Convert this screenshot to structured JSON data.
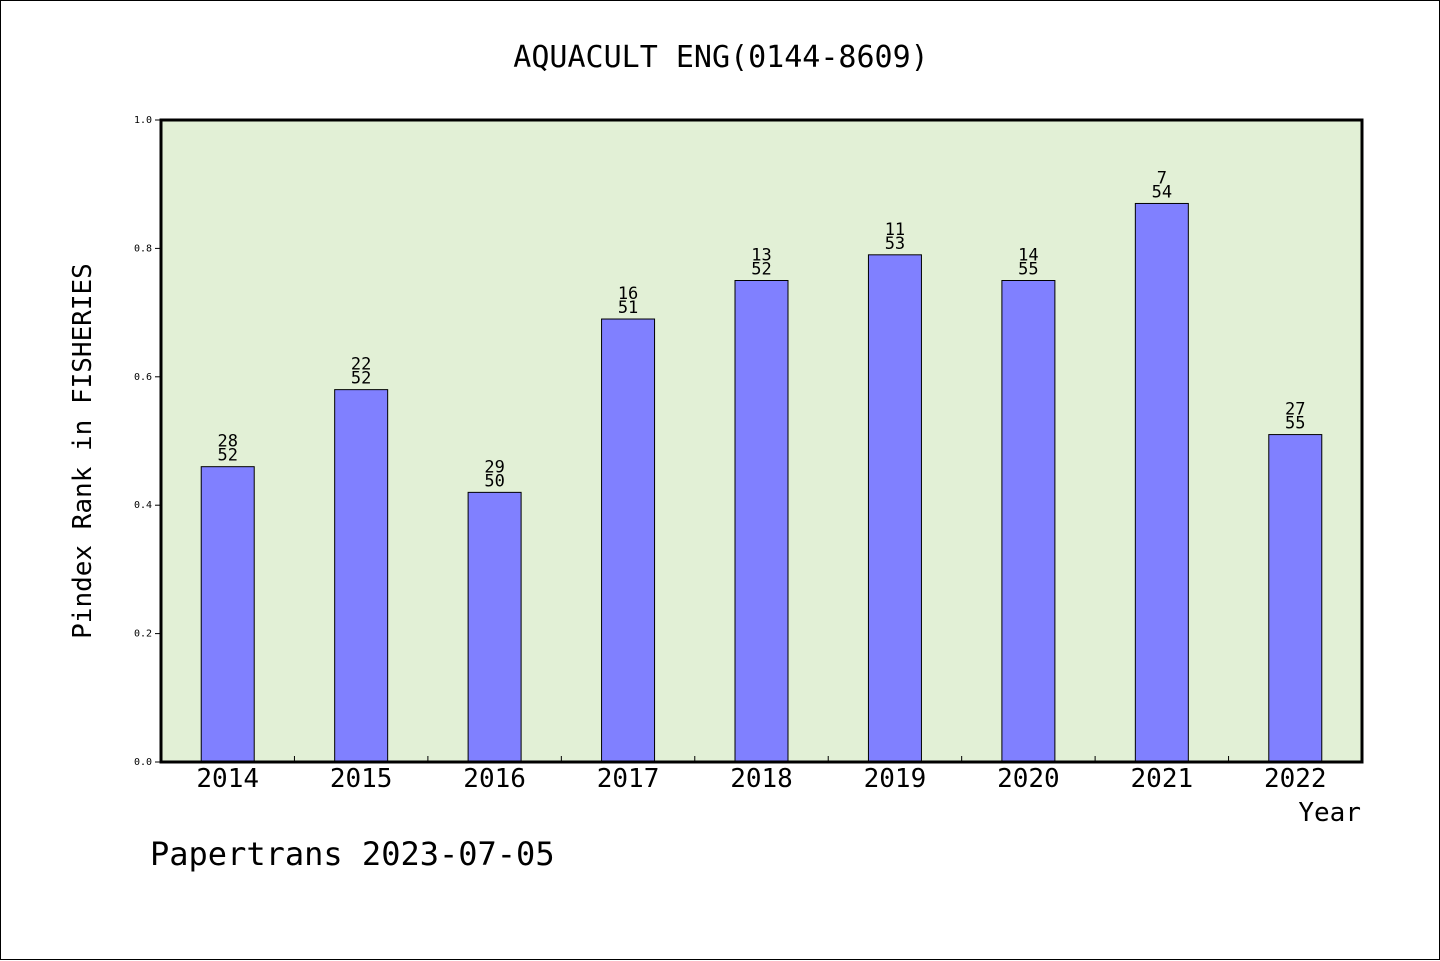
{
  "chart_data": {
    "type": "bar",
    "title": "AQUACULT ENG(0144-8609)",
    "xlabel": "Year",
    "ylabel": "Pindex Rank in FISHERIES",
    "ylim": [
      0,
      1.0
    ],
    "yticks": [
      "0.0",
      "0.2",
      "0.4",
      "0.6",
      "0.8",
      "1.0"
    ],
    "categories": [
      "2014",
      "2015",
      "2016",
      "2017",
      "2018",
      "2019",
      "2020",
      "2021",
      "2022"
    ],
    "values": [
      0.46,
      0.58,
      0.42,
      0.69,
      0.75,
      0.79,
      0.75,
      0.87,
      0.51
    ],
    "rank": [
      "28",
      "22",
      "29",
      "16",
      "13",
      "11",
      "14",
      "7",
      "27"
    ],
    "total": [
      "52",
      "52",
      "50",
      "51",
      "52",
      "53",
      "55",
      "54",
      "55"
    ],
    "colors": {
      "plot_bg": "#e2f0d6",
      "bar": "#8080ff",
      "bar_edge": "#000000"
    }
  },
  "footer": {
    "credit": "Papertrans 2023-07-05"
  }
}
